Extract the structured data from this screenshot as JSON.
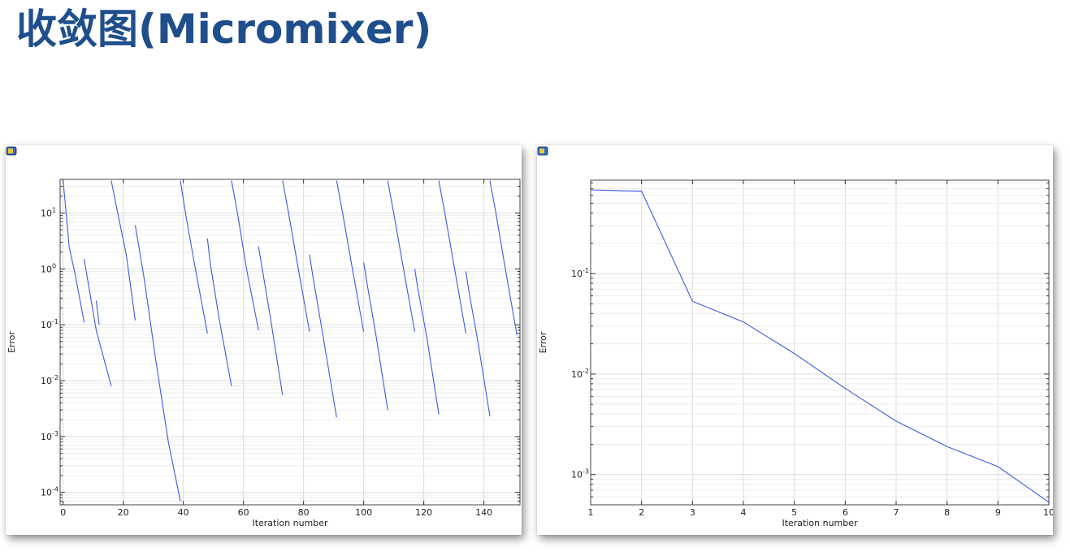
{
  "page": {
    "title": "收敛图(Micromixer)"
  },
  "icons": {
    "panel_icon": "plot-window-icon"
  },
  "colors": {
    "title": "#1f4e8c",
    "series": "#3b5bdb",
    "grid": "#dcdcdc"
  },
  "chart_data": [
    {
      "type": "line",
      "title": "",
      "xlabel": "Iteration number",
      "ylabel": "Error",
      "xlim": [
        -1,
        152
      ],
      "ylim": [
        6e-05,
        40
      ],
      "yscale": "log",
      "grid": true,
      "x_ticks": [
        0,
        20,
        40,
        60,
        80,
        100,
        120,
        140
      ],
      "x_tick_labels": [
        "0",
        "20",
        "40",
        "60",
        "80",
        "100",
        "120",
        "140"
      ],
      "y_ticks": [
        0.0001,
        0.001,
        0.01,
        0.1,
        1,
        10
      ],
      "y_tick_labels": [
        {
          "base": "10",
          "exp": "-4"
        },
        {
          "base": "10",
          "exp": "-3"
        },
        {
          "base": "10",
          "exp": "-2"
        },
        {
          "base": "10",
          "exp": "-1"
        },
        {
          "base": "10",
          "exp": "0"
        },
        {
          "base": "10",
          "exp": "1"
        }
      ],
      "series": [
        {
          "x": [
            0,
            1,
            2,
            4,
            7
          ],
          "y": [
            38,
            10,
            2.5,
            0.8,
            0.11
          ]
        },
        {
          "x": [
            7,
            11,
            16
          ],
          "y": [
            1.5,
            0.08,
            0.008
          ]
        },
        {
          "x": [
            11,
            12
          ],
          "y": [
            0.27,
            0.1
          ]
        },
        {
          "x": [
            16,
            18,
            21,
            24
          ],
          "y": [
            38,
            11,
            1.8,
            0.12
          ]
        },
        {
          "x": [
            24,
            27,
            31,
            35,
            39
          ],
          "y": [
            6,
            0.65,
            0.02,
            0.0008,
            7e-05
          ]
        },
        {
          "x": [
            39,
            41,
            44,
            48
          ],
          "y": [
            38,
            8,
            1,
            0.07
          ]
        },
        {
          "x": [
            48,
            49,
            52,
            56
          ],
          "y": [
            3.5,
            1.2,
            0.12,
            0.008
          ]
        },
        {
          "x": [
            56,
            58,
            61,
            65
          ],
          "y": [
            38,
            10,
            1,
            0.08
          ]
        },
        {
          "x": [
            65,
            66,
            69,
            73
          ],
          "y": [
            2.5,
            1.2,
            0.13,
            0.0055
          ]
        },
        {
          "x": [
            73,
            75,
            78,
            82
          ],
          "y": [
            38,
            10,
            1.2,
            0.075
          ]
        },
        {
          "x": [
            82,
            83,
            86,
            91
          ],
          "y": [
            1.8,
            0.8,
            0.09,
            0.0022
          ]
        },
        {
          "x": [
            91,
            93,
            96,
            100
          ],
          "y": [
            38,
            10,
            1.2,
            0.075
          ]
        },
        {
          "x": [
            100,
            101,
            104,
            108
          ],
          "y": [
            1.3,
            0.6,
            0.07,
            0.003
          ]
        },
        {
          "x": [
            108,
            110,
            113,
            117
          ],
          "y": [
            38,
            10,
            1.2,
            0.075
          ]
        },
        {
          "x": [
            117,
            118,
            121,
            125
          ],
          "y": [
            1.0,
            0.45,
            0.06,
            0.0025
          ]
        },
        {
          "x": [
            125,
            127,
            130,
            134
          ],
          "y": [
            38,
            10,
            1.2,
            0.07
          ]
        },
        {
          "x": [
            134,
            135,
            138,
            142
          ],
          "y": [
            0.9,
            0.4,
            0.05,
            0.0023
          ]
        },
        {
          "x": [
            142,
            144,
            147,
            151
          ],
          "y": [
            38,
            10,
            1.1,
            0.065
          ]
        }
      ]
    },
    {
      "type": "line",
      "title": "",
      "xlabel": "Iteration number",
      "ylabel": "Error",
      "xlim": [
        1,
        10
      ],
      "ylim": [
        0.0005,
        0.85
      ],
      "yscale": "log",
      "grid": true,
      "x_ticks": [
        1,
        2,
        3,
        4,
        5,
        6,
        7,
        8,
        9,
        10
      ],
      "x_tick_labels": [
        "1",
        "2",
        "3",
        "4",
        "5",
        "6",
        "7",
        "8",
        "9",
        "10"
      ],
      "y_ticks": [
        0.001,
        0.01,
        0.1
      ],
      "y_tick_labels": [
        {
          "base": "10",
          "exp": "-3"
        },
        {
          "base": "10",
          "exp": "-2"
        },
        {
          "base": "10",
          "exp": "-1"
        }
      ],
      "series": [
        {
          "x": [
            1,
            2,
            3,
            4,
            5,
            6,
            7,
            8,
            9,
            10
          ],
          "y": [
            0.68,
            0.66,
            0.053,
            0.033,
            0.016,
            0.0072,
            0.0034,
            0.0019,
            0.0012,
            0.00053
          ]
        }
      ]
    }
  ]
}
